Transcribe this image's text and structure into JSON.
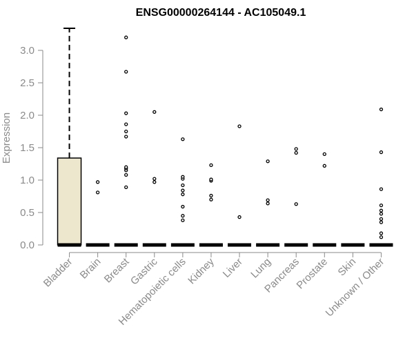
{
  "chart_data": {
    "type": "box",
    "title": "ENSG00000264144 - AC105049.1",
    "xlabel": "",
    "ylabel": "Expression",
    "ylim": [
      0,
      3.35
    ],
    "yticks": [
      0.0,
      0.5,
      1.0,
      1.5,
      2.0,
      2.5,
      3.0
    ],
    "ytick_labels": [
      "0.0",
      "0.5",
      "1.0",
      "1.5",
      "2.0",
      "2.5",
      "3.0"
    ],
    "categories": [
      "Bladder",
      "Brain",
      "Breast",
      "Gastric",
      "Hematopoietic cells",
      "Kidney",
      "Liver",
      "Lung",
      "Pancreas",
      "Prostate",
      "Skin",
      "Unknown / Other"
    ],
    "box_fill": "#ede7ce",
    "boxes": [
      {
        "category": "Bladder",
        "min": 0.0,
        "q1": 0.0,
        "median": 0.0,
        "q3": 1.34,
        "max": 3.34,
        "outliers": []
      },
      {
        "category": "Brain",
        "min": 0.0,
        "q1": 0.0,
        "median": 0.0,
        "q3": 0.0,
        "max": 0.0,
        "outliers": [
          0.81,
          0.97
        ]
      },
      {
        "category": "Breast",
        "min": 0.0,
        "q1": 0.0,
        "median": 0.0,
        "q3": 0.0,
        "max": 0.0,
        "outliers": [
          0.89,
          1.08,
          1.15,
          1.18,
          1.2,
          1.67,
          1.75,
          1.86,
          2.03,
          2.67,
          3.2
        ]
      },
      {
        "category": "Gastric",
        "min": 0.0,
        "q1": 0.0,
        "median": 0.0,
        "q3": 0.0,
        "max": 0.0,
        "outliers": [
          0.97,
          1.02,
          2.05
        ]
      },
      {
        "category": "Hematopoietic cells",
        "min": 0.0,
        "q1": 0.0,
        "median": 0.0,
        "q3": 0.0,
        "max": 0.0,
        "outliers": [
          0.38,
          0.45,
          0.59,
          0.78,
          0.84,
          0.92,
          1.02,
          1.05,
          1.63
        ]
      },
      {
        "category": "Kidney",
        "min": 0.0,
        "q1": 0.0,
        "median": 0.0,
        "q3": 0.0,
        "max": 0.0,
        "outliers": [
          0.7,
          0.76,
          0.99,
          1.01,
          1.23
        ]
      },
      {
        "category": "Liver",
        "min": 0.0,
        "q1": 0.0,
        "median": 0.0,
        "q3": 0.0,
        "max": 0.0,
        "outliers": [
          0.43,
          1.83
        ]
      },
      {
        "category": "Lung",
        "min": 0.0,
        "q1": 0.0,
        "median": 0.0,
        "q3": 0.0,
        "max": 0.0,
        "outliers": [
          0.64,
          0.69,
          1.29
        ]
      },
      {
        "category": "Pancreas",
        "min": 0.0,
        "q1": 0.0,
        "median": 0.0,
        "q3": 0.0,
        "max": 0.0,
        "outliers": [
          0.63,
          1.42,
          1.48
        ]
      },
      {
        "category": "Prostate",
        "min": 0.0,
        "q1": 0.0,
        "median": 0.0,
        "q3": 0.0,
        "max": 0.0,
        "outliers": [
          1.22,
          1.4
        ]
      },
      {
        "category": "Skin",
        "min": 0.0,
        "q1": 0.0,
        "median": 0.0,
        "q3": 0.0,
        "max": 0.0,
        "outliers": []
      },
      {
        "category": "Unknown / Other",
        "min": 0.0,
        "q1": 0.0,
        "median": 0.0,
        "q3": 0.0,
        "max": 0.0,
        "outliers": [
          0.12,
          0.18,
          0.35,
          0.4,
          0.48,
          0.53,
          0.61,
          0.86,
          1.43,
          2.09
        ]
      }
    ],
    "grid": false,
    "legend": "none"
  }
}
